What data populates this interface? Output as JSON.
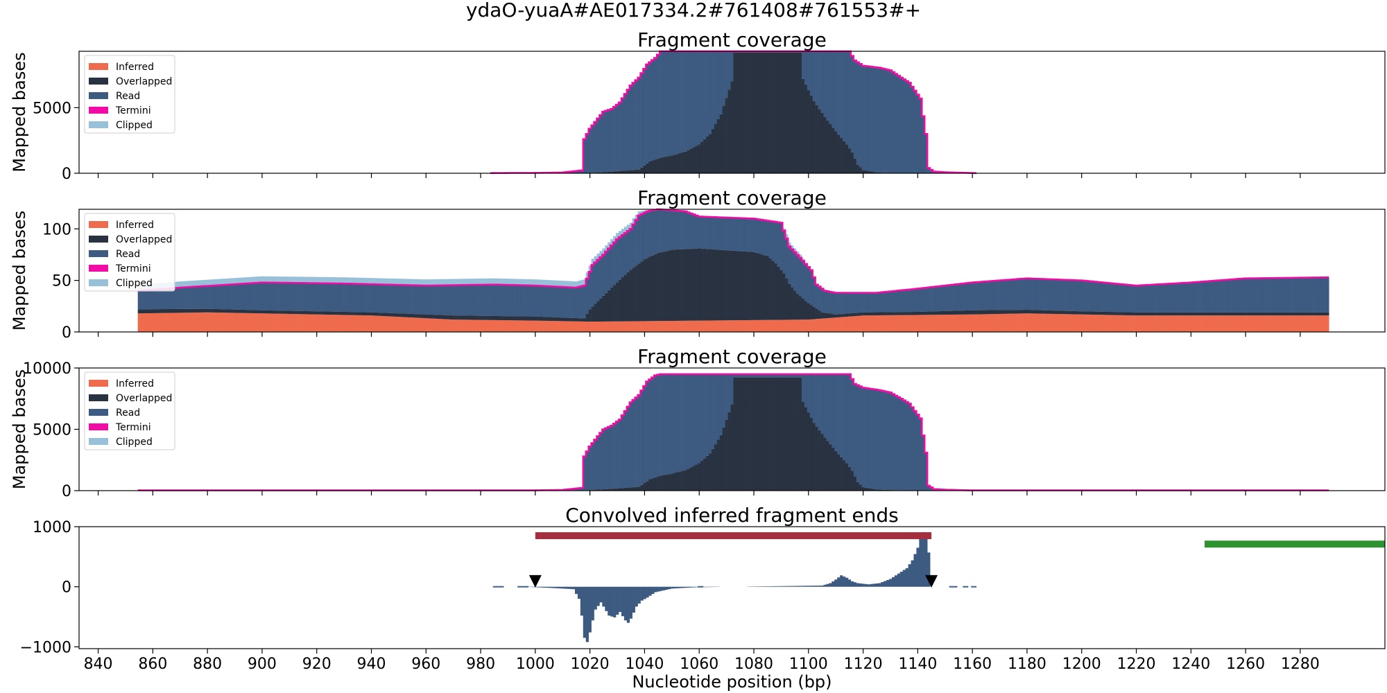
{
  "figure": {
    "suptitle": "ydaO-yuaA#AE017334.2#761408#761553#+"
  },
  "colors": {
    "inferred": "#ee6c4d",
    "overlapped": "#293241",
    "read": "#3d5a80",
    "termini": "#f20ca5",
    "clipped": "#98c1d9",
    "conv_bar": "#3d5a80",
    "red_range": "#a4303f",
    "green_range": "#2f9231",
    "marker": "#000000"
  },
  "chart_data": [
    {
      "type": "area",
      "title": "Fragment coverage",
      "xlabel": "",
      "ylabel": "Mapped bases",
      "xlim": [
        833,
        1311
      ],
      "ylim": [
        0,
        9300
      ],
      "yticks": [
        0,
        5000
      ],
      "legend": {
        "placement": "top-left",
        "entries": [
          "Inferred",
          "Overlapped",
          "Read",
          "Termini",
          "Clipped"
        ]
      },
      "x_from": 855,
      "x_to": 1290,
      "step": 1,
      "inferred_level": 0,
      "total_profile": [
        [
          855,
          0
        ],
        [
          983,
          0
        ],
        [
          985,
          20
        ],
        [
          1000,
          30
        ],
        [
          1010,
          60
        ],
        [
          1017,
          220
        ],
        [
          1018,
          2600
        ],
        [
          1020,
          3400
        ],
        [
          1025,
          4700
        ],
        [
          1028,
          4900
        ],
        [
          1031,
          5400
        ],
        [
          1035,
          6700
        ],
        [
          1038,
          7300
        ],
        [
          1041,
          8300
        ],
        [
          1044,
          8800
        ],
        [
          1046,
          9300
        ],
        [
          1115,
          9300
        ],
        [
          1117,
          8600
        ],
        [
          1120,
          8200
        ],
        [
          1126,
          8050
        ],
        [
          1130,
          7850
        ],
        [
          1134,
          7300
        ],
        [
          1137,
          6900
        ],
        [
          1141,
          5700
        ],
        [
          1143,
          3000
        ],
        [
          1144,
          400
        ],
        [
          1146,
          130
        ],
        [
          1150,
          80
        ],
        [
          1160,
          20
        ],
        [
          1162,
          0
        ],
        [
          1290,
          0
        ]
      ],
      "overlap_profile": [
        [
          855,
          0
        ],
        [
          1005,
          0
        ],
        [
          1020,
          20
        ],
        [
          1025,
          80
        ],
        [
          1030,
          150
        ],
        [
          1038,
          280
        ],
        [
          1042,
          900
        ],
        [
          1046,
          1200
        ],
        [
          1050,
          1350
        ],
        [
          1055,
          1650
        ],
        [
          1060,
          2200
        ],
        [
          1064,
          3000
        ],
        [
          1068,
          4500
        ],
        [
          1072,
          7000
        ],
        [
          1073,
          9200
        ],
        [
          1097,
          9200
        ],
        [
          1098,
          7200
        ],
        [
          1102,
          5500
        ],
        [
          1106,
          4300
        ],
        [
          1110,
          3200
        ],
        [
          1114,
          2200
        ],
        [
          1116,
          1600
        ],
        [
          1118,
          650
        ],
        [
          1120,
          250
        ],
        [
          1125,
          60
        ],
        [
          1130,
          20
        ],
        [
          1135,
          0
        ],
        [
          1290,
          0
        ]
      ],
      "clipped_profile": [],
      "termini_on": true
    },
    {
      "type": "area",
      "title": "Fragment coverage",
      "xlabel": "",
      "ylabel": "Mapped bases",
      "xlim": [
        833,
        1311
      ],
      "ylim": [
        0,
        119
      ],
      "yticks": [
        0,
        50,
        100
      ],
      "legend": {
        "placement": "top-left",
        "entries": [
          "Inferred",
          "Overlapped",
          "Read",
          "Termini",
          "Clipped"
        ]
      },
      "x_from": 855,
      "x_to": 1290,
      "step": 1,
      "inferred_profile": [
        [
          855,
          18
        ],
        [
          880,
          19
        ],
        [
          900,
          18
        ],
        [
          940,
          16
        ],
        [
          970,
          12
        ],
        [
          1000,
          11
        ],
        [
          1020,
          10
        ],
        [
          1060,
          11
        ],
        [
          1100,
          12
        ],
        [
          1120,
          16
        ],
        [
          1160,
          17
        ],
        [
          1180,
          18
        ],
        [
          1220,
          16
        ],
        [
          1260,
          16
        ],
        [
          1290,
          16
        ]
      ],
      "total_profile": [
        [
          855,
          40
        ],
        [
          870,
          43
        ],
        [
          900,
          48
        ],
        [
          930,
          47
        ],
        [
          960,
          45
        ],
        [
          985,
          46
        ],
        [
          1000,
          45
        ],
        [
          1015,
          43
        ],
        [
          1018,
          45
        ],
        [
          1021,
          65
        ],
        [
          1025,
          75
        ],
        [
          1030,
          90
        ],
        [
          1035,
          100
        ],
        [
          1038,
          113
        ],
        [
          1041,
          117
        ],
        [
          1045,
          119
        ],
        [
          1055,
          117
        ],
        [
          1060,
          112
        ],
        [
          1080,
          110
        ],
        [
          1090,
          106
        ],
        [
          1093,
          83
        ],
        [
          1097,
          72
        ],
        [
          1101,
          60
        ],
        [
          1103,
          46
        ],
        [
          1106,
          40
        ],
        [
          1110,
          38
        ],
        [
          1125,
          38
        ],
        [
          1140,
          42
        ],
        [
          1160,
          48
        ],
        [
          1180,
          52
        ],
        [
          1200,
          50
        ],
        [
          1220,
          45
        ],
        [
          1240,
          48
        ],
        [
          1260,
          52
        ],
        [
          1290,
          53
        ]
      ],
      "overlap_profile": [
        [
          855,
          4
        ],
        [
          900,
          3
        ],
        [
          940,
          3
        ],
        [
          970,
          4
        ],
        [
          1000,
          4
        ],
        [
          1018,
          3
        ],
        [
          1020,
          12
        ],
        [
          1025,
          25
        ],
        [
          1030,
          38
        ],
        [
          1035,
          50
        ],
        [
          1040,
          60
        ],
        [
          1045,
          66
        ],
        [
          1050,
          69
        ],
        [
          1060,
          70
        ],
        [
          1070,
          68
        ],
        [
          1080,
          66
        ],
        [
          1085,
          62
        ],
        [
          1088,
          55
        ],
        [
          1091,
          45
        ],
        [
          1093,
          35
        ],
        [
          1096,
          25
        ],
        [
          1099,
          18
        ],
        [
          1102,
          12
        ],
        [
          1105,
          6
        ],
        [
          1110,
          3
        ],
        [
          1140,
          3
        ],
        [
          1160,
          4
        ],
        [
          1200,
          3
        ],
        [
          1290,
          3
        ]
      ],
      "clipped_profile": [
        [
          1036,
          6
        ],
        [
          1042,
          0
        ],
        [
          1090,
          0
        ],
        [
          1092,
          4
        ],
        [
          1097,
          3
        ],
        [
          1100,
          0
        ]
      ],
      "termini_on": true
    },
    {
      "type": "area",
      "title": "Fragment coverage",
      "xlabel": "",
      "ylabel": "Mapped bases",
      "xlim": [
        833,
        1311
      ],
      "ylim": [
        0,
        10000
      ],
      "yticks": [
        0,
        5000,
        10000
      ],
      "legend": {
        "placement": "top-left",
        "entries": [
          "Inferred",
          "Overlapped",
          "Read",
          "Termini",
          "Clipped"
        ]
      },
      "x_from": 855,
      "x_to": 1290,
      "step": 1,
      "inferred_level": 30,
      "total_profile": [
        [
          855,
          0
        ],
        [
          983,
          0
        ],
        [
          985,
          20
        ],
        [
          1000,
          30
        ],
        [
          1010,
          60
        ],
        [
          1017,
          220
        ],
        [
          1018,
          2800
        ],
        [
          1020,
          3600
        ],
        [
          1025,
          5000
        ],
        [
          1028,
          5300
        ],
        [
          1031,
          5800
        ],
        [
          1035,
          7200
        ],
        [
          1038,
          7800
        ],
        [
          1041,
          8900
        ],
        [
          1044,
          9400
        ],
        [
          1046,
          9500
        ],
        [
          1115,
          9500
        ],
        [
          1117,
          8700
        ],
        [
          1120,
          8400
        ],
        [
          1126,
          8200
        ],
        [
          1130,
          8000
        ],
        [
          1134,
          7500
        ],
        [
          1137,
          7100
        ],
        [
          1141,
          5900
        ],
        [
          1143,
          3100
        ],
        [
          1144,
          400
        ],
        [
          1146,
          130
        ],
        [
          1150,
          80
        ],
        [
          1160,
          20
        ],
        [
          1162,
          0
        ],
        [
          1290,
          0
        ]
      ],
      "overlap_profile": [
        [
          855,
          0
        ],
        [
          1005,
          0
        ],
        [
          1020,
          20
        ],
        [
          1025,
          80
        ],
        [
          1030,
          150
        ],
        [
          1038,
          280
        ],
        [
          1042,
          900
        ],
        [
          1046,
          1200
        ],
        [
          1050,
          1350
        ],
        [
          1055,
          1650
        ],
        [
          1060,
          2200
        ],
        [
          1064,
          3000
        ],
        [
          1068,
          4500
        ],
        [
          1072,
          7000
        ],
        [
          1073,
          9200
        ],
        [
          1097,
          9200
        ],
        [
          1098,
          7200
        ],
        [
          1102,
          5500
        ],
        [
          1106,
          4300
        ],
        [
          1110,
          3200
        ],
        [
          1114,
          2200
        ],
        [
          1116,
          1600
        ],
        [
          1118,
          650
        ],
        [
          1120,
          250
        ],
        [
          1125,
          60
        ],
        [
          1130,
          20
        ],
        [
          1135,
          0
        ],
        [
          1290,
          0
        ]
      ],
      "clipped_profile": [],
      "termini_on": true
    },
    {
      "type": "bar",
      "title": "Convolved inferred fragment ends",
      "xlabel": "Nucleotide position (bp)",
      "ylabel": "",
      "xlim": [
        833,
        1311
      ],
      "ylim": [
        -1030,
        1000
      ],
      "yticks": [
        -1000,
        0,
        1000
      ],
      "xticks": [
        840,
        860,
        880,
        900,
        920,
        940,
        960,
        980,
        1000,
        1020,
        1040,
        1060,
        1080,
        1100,
        1120,
        1140,
        1160,
        1180,
        1200,
        1220,
        1240,
        1260,
        1280
      ],
      "series": [
        {
          "values_profile": [
            [
              985,
              0
            ],
            [
              988,
              0
            ],
            [
              994,
              0
            ],
            [
              996,
              0
            ],
            [
              1006,
              -20
            ],
            [
              1014,
              -40
            ],
            [
              1016,
              -200
            ],
            [
              1017,
              -480
            ],
            [
              1018,
              -850
            ],
            [
              1019,
              -920
            ],
            [
              1020,
              -760
            ],
            [
              1021,
              -560
            ],
            [
              1022,
              -380
            ],
            [
              1024,
              -260
            ],
            [
              1025,
              -330
            ],
            [
              1027,
              -480
            ],
            [
              1029,
              -510
            ],
            [
              1031,
              -420
            ],
            [
              1033,
              -560
            ],
            [
              1034,
              -600
            ],
            [
              1035,
              -530
            ],
            [
              1037,
              -330
            ],
            [
              1039,
              -230
            ],
            [
              1041,
              -180
            ],
            [
              1044,
              -90
            ],
            [
              1050,
              -30
            ],
            [
              1058,
              -10
            ],
            [
              1064,
              -5
            ],
            [
              1105,
              20
            ],
            [
              1108,
              60
            ],
            [
              1110,
              120
            ],
            [
              1112,
              190
            ],
            [
              1114,
              150
            ],
            [
              1116,
              90
            ],
            [
              1118,
              60
            ],
            [
              1122,
              40
            ],
            [
              1126,
              60
            ],
            [
              1130,
              130
            ],
            [
              1133,
              220
            ],
            [
              1136,
              310
            ],
            [
              1138,
              440
            ],
            [
              1140,
              650
            ],
            [
              1141,
              880
            ],
            [
              1142,
              910
            ],
            [
              1143,
              860
            ],
            [
              1144,
              570
            ],
            [
              1145,
              0
            ]
          ]
        }
      ],
      "sparse_bars": [
        985,
        986,
        987,
        988,
        994,
        995,
        996,
        997,
        1060,
        1061,
        1152,
        1153,
        1154,
        1157,
        1158,
        1160,
        1161
      ],
      "ranges": [
        {
          "kind": "red",
          "from": 1000,
          "to": 1145,
          "y": 850
        },
        {
          "kind": "green",
          "from": 1245,
          "to": 1311,
          "y": 710
        }
      ],
      "markers": [
        {
          "x": 1000,
          "y": 90
        },
        {
          "x": 1145,
          "y": 90
        }
      ]
    }
  ]
}
